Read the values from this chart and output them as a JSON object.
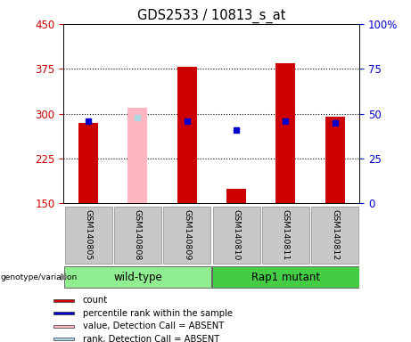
{
  "title": "GDS2533 / 10813_s_at",
  "samples": [
    "GSM140805",
    "GSM140808",
    "GSM140809",
    "GSM140810",
    "GSM140811",
    "GSM140812"
  ],
  "red_bars": [
    285,
    0,
    378,
    175,
    385,
    295
  ],
  "pink_bars": [
    0,
    310,
    0,
    0,
    0,
    0
  ],
  "blue_dots": [
    288,
    0,
    287,
    272,
    288,
    285
  ],
  "light_blue_dots": [
    0,
    293,
    0,
    0,
    0,
    0
  ],
  "absent_mask": [
    false,
    true,
    false,
    false,
    false,
    false
  ],
  "ymin": 150,
  "ymax": 450,
  "yticks_left": [
    150,
    225,
    300,
    375,
    450
  ],
  "yticks_right": [
    0,
    25,
    50,
    75,
    100
  ],
  "left_tick_color": "#CC0000",
  "right_tick_color": "#0000CC",
  "bar_width": 0.4,
  "bg_color": "#FFFFFF",
  "grid_dotted_at": [
    225,
    300,
    375
  ],
  "wt_color": "#90EE90",
  "rap_color": "#44CC44",
  "label_box_color": "#C8C8C8",
  "red_color": "#CC0000",
  "blue_color": "#0000CC",
  "pink_color": "#FFB6C1",
  "lightblue_color": "#ADD8E6",
  "legend_labels": [
    "count",
    "percentile rank within the sample",
    "value, Detection Call = ABSENT",
    "rank, Detection Call = ABSENT"
  ],
  "legend_colors": [
    "#CC0000",
    "#0000CC",
    "#FFB6C1",
    "#ADD8E6"
  ]
}
